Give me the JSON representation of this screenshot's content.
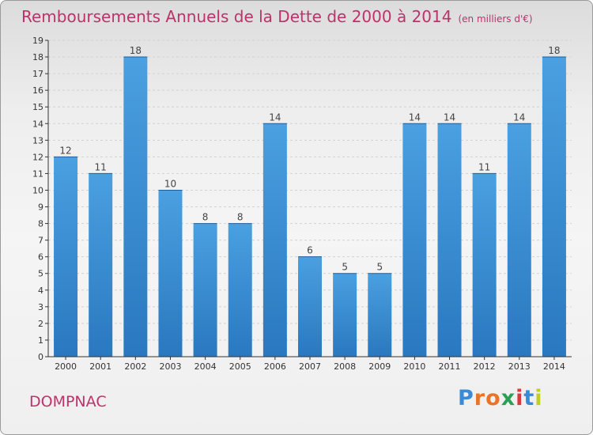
{
  "title": "Remboursements Annuels de la Dette de 2000 à 2014",
  "title_unit": "(en milliers d'€)",
  "town": "DOMPNAC",
  "logo": {
    "letters": [
      "P",
      "r",
      "o",
      "x",
      "i",
      "t",
      "i"
    ],
    "colors": [
      "#3a8ad6",
      "#e8742a",
      "#e8742a",
      "#2aa052",
      "#d63a3a",
      "#3a8ad6",
      "#c0d020"
    ]
  },
  "colors": {
    "bar": "#4aa0e0",
    "bar_dark": "#2a78c0",
    "title": "#c0306a",
    "axis": "#333333"
  },
  "chart_data": {
    "type": "bar",
    "title": "Remboursements Annuels de la Dette de 2000 à 2014",
    "categories": [
      "2000",
      "2001",
      "2002",
      "2003",
      "2004",
      "2005",
      "2006",
      "2007",
      "2008",
      "2009",
      "2010",
      "2011",
      "2012",
      "2013",
      "2014"
    ],
    "values": [
      12,
      11,
      18,
      10,
      8,
      8,
      14,
      6,
      5,
      5,
      14,
      14,
      11,
      14,
      18
    ],
    "ylim": [
      0,
      19
    ],
    "yticks": [
      0,
      1,
      2,
      3,
      4,
      5,
      6,
      7,
      8,
      9,
      10,
      11,
      12,
      13,
      14,
      15,
      16,
      17,
      18,
      19
    ],
    "grid": true,
    "data_labels": true
  }
}
